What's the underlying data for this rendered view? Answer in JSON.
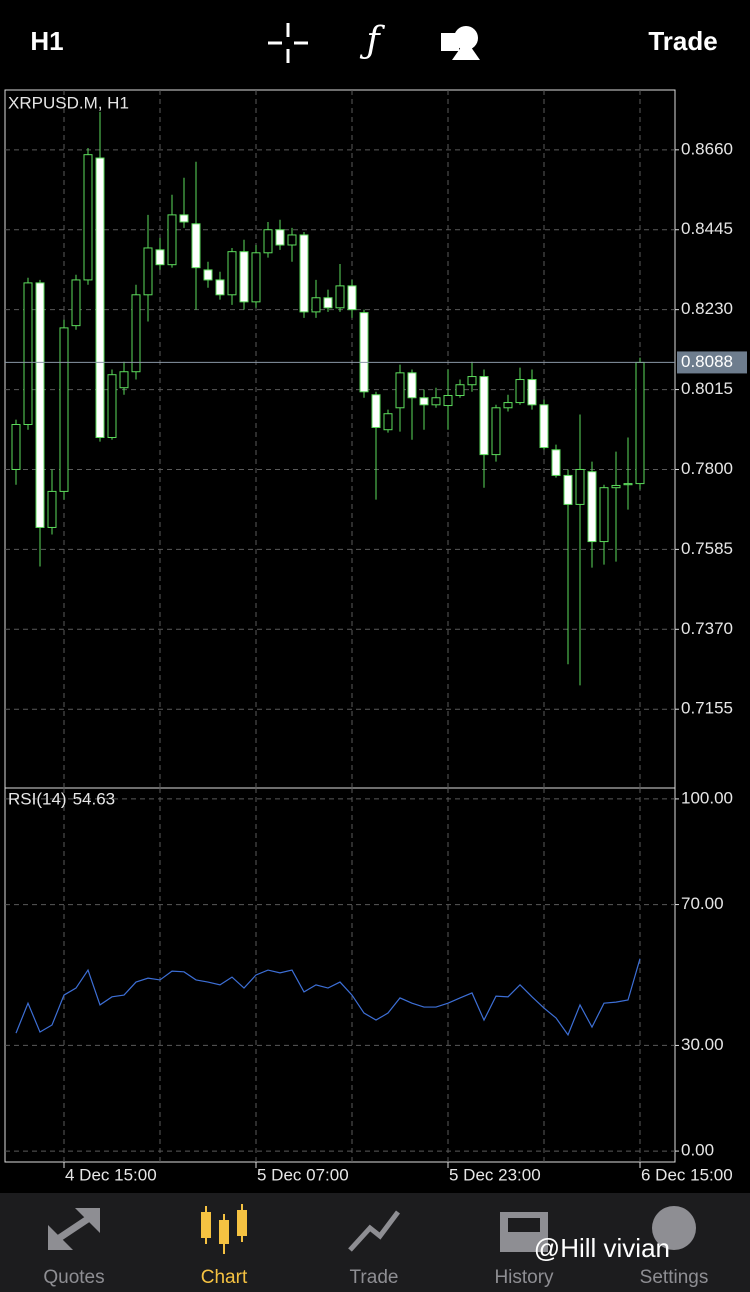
{
  "toolbar": {
    "timeframe": "H1",
    "action": "Trade"
  },
  "tabs": [
    "Quotes",
    "Chart",
    "Trade",
    "History",
    "Settings"
  ],
  "active_tab": 1,
  "watermark": "@Hill vivian",
  "chart_data": [
    {
      "type": "candlestick",
      "title": "XRPUSD.M, H1",
      "categories": [
        null,
        null,
        null,
        null,
        "4 Dec 15:00",
        null,
        null,
        null,
        null,
        null,
        null,
        null,
        null,
        null,
        null,
        null,
        null,
        null,
        null,
        null,
        "5 Dec 07:00",
        null,
        null,
        null,
        null,
        null,
        null,
        null,
        null,
        null,
        null,
        null,
        null,
        null,
        null,
        null,
        "5 Dec 23:00",
        null,
        null,
        null,
        null,
        null,
        null,
        null,
        null,
        null,
        null,
        null,
        null,
        null,
        null,
        null,
        "6 Dec 15:00"
      ],
      "open": [
        0.78,
        0.7921,
        0.8302,
        0.7644,
        0.7741,
        0.8187,
        0.831,
        0.8638,
        0.7886,
        0.802,
        0.8063,
        0.827,
        0.8391,
        0.8351,
        0.8485,
        0.8461,
        0.8337,
        0.831,
        0.827,
        0.8386,
        0.8251,
        0.8383,
        0.8445,
        0.8404,
        0.8431,
        0.8224,
        0.8262,
        0.8235,
        0.8294,
        0.8222,
        0.8001,
        0.7907,
        0.7966,
        0.806,
        0.7993,
        0.7974,
        0.7972,
        0.7999,
        0.8028,
        0.805,
        0.784,
        0.7966,
        0.798,
        0.8042,
        0.7974,
        0.7853,
        0.7784,
        0.7706,
        0.7794,
        0.7606,
        0.7751,
        0.7759,
        0.7762
      ],
      "high": [
        0.7934,
        0.8316,
        0.831,
        0.78,
        0.8203,
        0.8324,
        0.8665,
        0.8762,
        0.8069,
        0.809,
        0.8297,
        0.8485,
        0.8423,
        0.8539,
        0.8585,
        0.8628,
        0.8359,
        0.8332,
        0.8396,
        0.8418,
        0.8404,
        0.8466,
        0.8472,
        0.845,
        0.8439,
        0.831,
        0.8284,
        0.8353,
        0.831,
        0.823,
        0.8009,
        0.7961,
        0.8082,
        0.8069,
        0.8015,
        0.802,
        0.8069,
        0.8042,
        0.809,
        0.8069,
        0.7974,
        0.8001,
        0.8074,
        0.8069,
        0.7988,
        0.7867,
        0.78,
        0.7948,
        0.7821,
        0.7759,
        0.7848,
        0.7886,
        0.8101
      ],
      "low": [
        0.7759,
        0.7907,
        0.7539,
        0.7625,
        0.7719,
        0.8176,
        0.8297,
        0.7875,
        0.788,
        0.8001,
        0.8042,
        0.8198,
        0.8337,
        0.8343,
        0.845,
        0.823,
        0.8289,
        0.8257,
        0.8243,
        0.823,
        0.8235,
        0.837,
        0.8391,
        0.8359,
        0.8208,
        0.8208,
        0.8224,
        0.8224,
        0.8208,
        0.7993,
        0.7719,
        0.7899,
        0.7902,
        0.788,
        0.7907,
        0.7966,
        0.7907,
        0.7993,
        0.8009,
        0.7751,
        0.7821,
        0.7956,
        0.7974,
        0.7961,
        0.7853,
        0.7778,
        0.7276,
        0.7219,
        0.7536,
        0.7544,
        0.7552,
        0.7692,
        0.7746
      ],
      "close": [
        0.7921,
        0.8302,
        0.7644,
        0.7741,
        0.8181,
        0.831,
        0.8647,
        0.7886,
        0.8055,
        0.8063,
        0.827,
        0.8396,
        0.8351,
        0.8485,
        0.8466,
        0.8343,
        0.831,
        0.827,
        0.8386,
        0.8251,
        0.8383,
        0.8445,
        0.8404,
        0.8431,
        0.8224,
        0.8262,
        0.8235,
        0.8294,
        0.823,
        0.8009,
        0.7913,
        0.795,
        0.806,
        0.7993,
        0.7974,
        0.7993,
        0.7999,
        0.8028,
        0.805,
        0.784,
        0.7966,
        0.798,
        0.8042,
        0.7974,
        0.7859,
        0.7784,
        0.7706,
        0.78,
        0.7606,
        0.7751,
        0.7757,
        0.7762,
        0.8088
      ],
      "up_color": "#000000",
      "down_color": "#ffffff",
      "outline_color": "#5ddc5d",
      "last_price": 0.8088,
      "ylim": [
        0.6943,
        0.8821
      ],
      "yticks": [
        {
          "value": 0.866,
          "label": "0.8660"
        },
        0.8445,
        {
          "value": 0.823,
          "label": "0.8230"
        },
        0.8015,
        {
          "value": 0.78,
          "label": "0.7800"
        },
        0.7585,
        {
          "value": 0.737,
          "label": "0.7370"
        },
        0.7155
      ],
      "grid": true
    },
    {
      "type": "line",
      "title": "RSI(14)",
      "current_value": 54.63,
      "color": "#3d6fd6",
      "values": [
        33.5,
        42.0,
        33.8,
        35.8,
        44.3,
        46.3,
        51.4,
        41.5,
        43.8,
        44.3,
        48.0,
        49.1,
        48.6,
        51.1,
        50.9,
        48.6,
        48.0,
        47.2,
        49.4,
        46.3,
        50.0,
        51.4,
        50.6,
        51.4,
        45.2,
        47.2,
        46.3,
        48.0,
        44.3,
        39.2,
        37.2,
        39.2,
        43.5,
        42.0,
        40.9,
        40.9,
        42.0,
        43.5,
        44.9,
        37.2,
        44.0,
        43.8,
        47.2,
        43.8,
        40.6,
        37.8,
        33.0,
        41.5,
        35.2,
        42.0,
        42.3,
        42.9,
        54.63
      ],
      "ylim": [
        -3.1,
        103.1
      ],
      "yticks": [
        {
          "value": 100,
          "label": "100.00"
        },
        {
          "value": 70,
          "label": "70.00"
        },
        {
          "value": 30,
          "label": "30.00"
        },
        {
          "value": 0,
          "label": "0.00"
        }
      ],
      "grid": true
    }
  ]
}
